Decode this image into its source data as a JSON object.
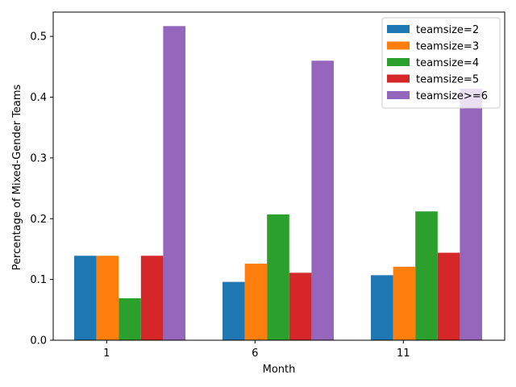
{
  "chart_data": {
    "type": "bar",
    "categories": [
      "1",
      "6",
      "11"
    ],
    "xlabel": "Month",
    "ylabel": "Percentage of Mixed-Gender Teams",
    "ylim": [
      0,
      0.54
    ],
    "yticks": [
      "0.0",
      "0.1",
      "0.2",
      "0.3",
      "0.4",
      "0.5"
    ],
    "ytick_values": [
      0,
      0.1,
      0.2,
      0.3,
      0.4,
      0.5
    ],
    "grid": false,
    "legend_position": "top-right",
    "series": [
      {
        "name": "teamsize=2",
        "color": "#1f77b4",
        "values": [
          0.139,
          0.096,
          0.107
        ]
      },
      {
        "name": "teamsize=3",
        "color": "#ff7f0e",
        "values": [
          0.139,
          0.126,
          0.121
        ]
      },
      {
        "name": "teamsize=4",
        "color": "#2ca02c",
        "values": [
          0.069,
          0.207,
          0.212
        ]
      },
      {
        "name": "teamsize=5",
        "color": "#d62728",
        "values": [
          0.139,
          0.111,
          0.144
        ]
      },
      {
        "name": "teamsize>=6",
        "color": "#9467bd",
        "values": [
          0.517,
          0.46,
          0.414
        ]
      }
    ]
  }
}
